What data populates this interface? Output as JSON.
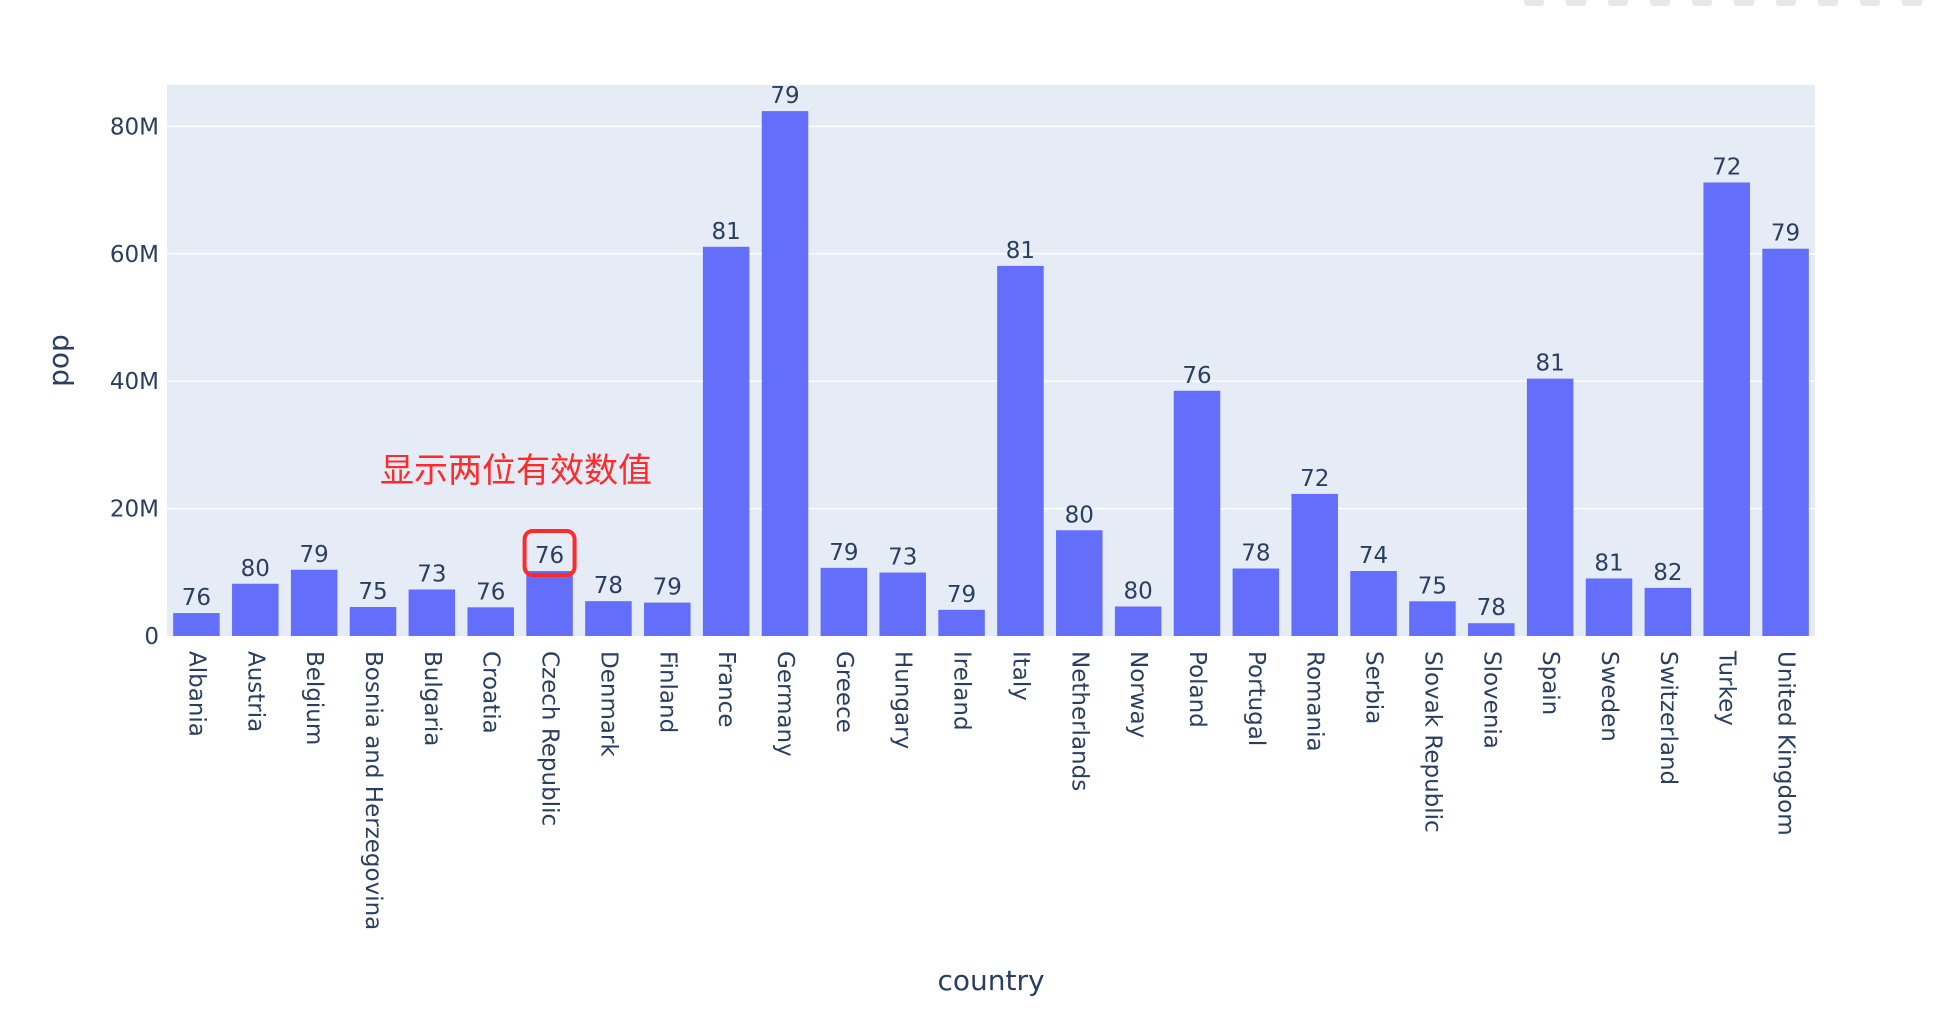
{
  "colors": {
    "bar": "#636efa",
    "plot_bg": "#e5ecf6",
    "grid": "#ffffff",
    "text": "#2a3f5f",
    "annotation_red": "#ff2a2a"
  },
  "modebar_icons": [
    "camera-icon",
    "zoom-icon",
    "pan-icon",
    "box-select-icon",
    "lasso-icon",
    "zoom-in-icon",
    "zoom-out-icon",
    "autoscale-icon",
    "reset-axes-icon",
    "plotly-logo-icon"
  ],
  "annotation": {
    "text": "显示两位有效数值",
    "highlighted_category": "Czech Republic"
  },
  "chart_data": {
    "type": "bar",
    "title": "",
    "xlabel": "country",
    "ylabel": "pop",
    "categories": [
      "Albania",
      "Austria",
      "Belgium",
      "Bosnia and Herzegovina",
      "Bulgaria",
      "Croatia",
      "Czech Republic",
      "Denmark",
      "Finland",
      "France",
      "Germany",
      "Greece",
      "Hungary",
      "Ireland",
      "Italy",
      "Netherlands",
      "Norway",
      "Poland",
      "Portugal",
      "Romania",
      "Serbia",
      "Slovak Republic",
      "Slovenia",
      "Spain",
      "Sweden",
      "Switzerland",
      "Turkey",
      "United Kingdom"
    ],
    "values": [
      3600000,
      8200000,
      10400000,
      4550000,
      7300000,
      4500000,
      10200000,
      5470000,
      5240000,
      61100000,
      82400000,
      10700000,
      9960000,
      4110000,
      58100000,
      16600000,
      4630000,
      38500000,
      10600000,
      22300000,
      10200000,
      5450000,
      2010000,
      40400000,
      9030000,
      7550000,
      71200000,
      60800000
    ],
    "bar_labels": [
      "76",
      "80",
      "79",
      "75",
      "73",
      "76",
      "76",
      "78",
      "79",
      "81",
      "79",
      "79",
      "73",
      "79",
      "81",
      "80",
      "80",
      "76",
      "78",
      "72",
      "74",
      "75",
      "78",
      "81",
      "81",
      "82",
      "72",
      "79"
    ],
    "ylim": [
      0,
      86500000
    ],
    "yticks": [
      0,
      20000000,
      40000000,
      60000000,
      80000000
    ],
    "ytick_labels": [
      "0",
      "20M",
      "40M",
      "60M",
      "80M"
    ],
    "grid": true
  }
}
